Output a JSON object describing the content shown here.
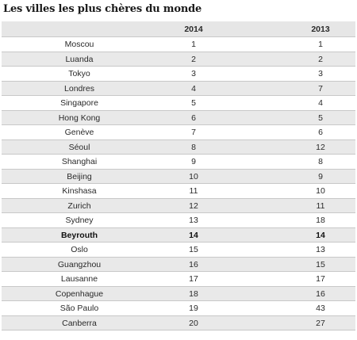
{
  "title": "Les villes les plus chères du monde",
  "table": {
    "headers": [
      "",
      "2014",
      "2013"
    ],
    "rows": [
      {
        "city": "Moscou",
        "y2014": "1",
        "y2013": "1",
        "bold": false
      },
      {
        "city": "Luanda",
        "y2014": "2",
        "y2013": "2",
        "bold": false
      },
      {
        "city": "Tokyo",
        "y2014": "3",
        "y2013": "3",
        "bold": false
      },
      {
        "city": "Londres",
        "y2014": "4",
        "y2013": "7",
        "bold": false
      },
      {
        "city": "Singapore",
        "y2014": "5",
        "y2013": "4",
        "bold": false
      },
      {
        "city": "Hong Kong",
        "y2014": "6",
        "y2013": "5",
        "bold": false
      },
      {
        "city": "Genève",
        "y2014": "7",
        "y2013": "6",
        "bold": false
      },
      {
        "city": "Séoul",
        "y2014": "8",
        "y2013": "12",
        "bold": false
      },
      {
        "city": "Shanghai",
        "y2014": "9",
        "y2013": "8",
        "bold": false
      },
      {
        "city": "Beijing",
        "y2014": "10",
        "y2013": "9",
        "bold": false
      },
      {
        "city": "Kinshasa",
        "y2014": "11",
        "y2013": "10",
        "bold": false
      },
      {
        "city": "Zurich",
        "y2014": "12",
        "y2013": "11",
        "bold": false
      },
      {
        "city": "Sydney",
        "y2014": "13",
        "y2013": "18",
        "bold": false
      },
      {
        "city": "Beyrouth",
        "y2014": "14",
        "y2013": "14",
        "bold": true
      },
      {
        "city": "Oslo",
        "y2014": "15",
        "y2013": "13",
        "bold": false
      },
      {
        "city": "Guangzhou",
        "y2014": "16",
        "y2013": "15",
        "bold": false
      },
      {
        "city": "Lausanne",
        "y2014": "17",
        "y2013": "17",
        "bold": false
      },
      {
        "city": "Copenhague",
        "y2014": "18",
        "y2013": "16",
        "bold": false
      },
      {
        "city": "São Paulo",
        "y2014": "19",
        "y2013": "43",
        "bold": false
      },
      {
        "city": "Canberra",
        "y2014": "20",
        "y2013": "27",
        "bold": false
      }
    ]
  }
}
